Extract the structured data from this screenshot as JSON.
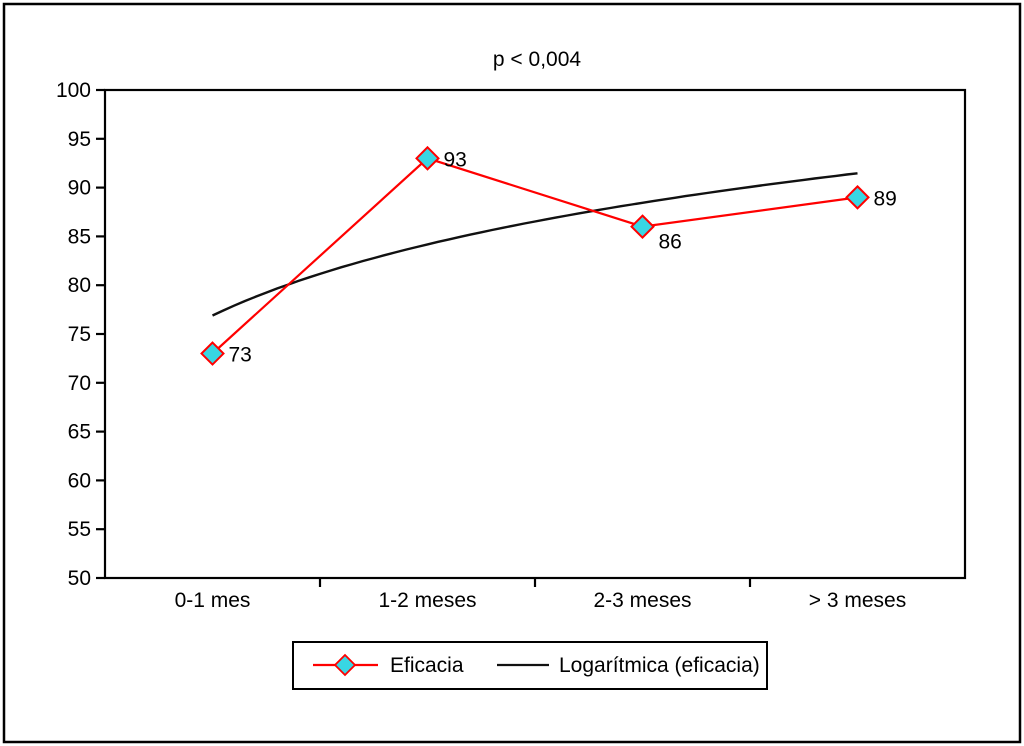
{
  "chart_data": {
    "type": "line",
    "title": "p < 0,004",
    "categories": [
      "0-1 mes",
      "1-2 meses",
      "2-3 meses",
      "> 3 meses"
    ],
    "series": [
      {
        "name": "Eficacia",
        "values": [
          73,
          93,
          86,
          89
        ],
        "color": "#FF0000",
        "marker": "diamond",
        "marker_fill": "#38D6E3",
        "marker_stroke": "#FF0000"
      },
      {
        "name": "Logarítmica (eficacia)",
        "type": "logarithmic-trendline",
        "of_series": "Eficacia",
        "color": "#111111"
      }
    ],
    "data_labels": [
      "73",
      "93",
      "86",
      "89"
    ],
    "ylim": [
      50,
      100
    ],
    "ytick_step": 5,
    "ytick_labels": [
      "50",
      "55",
      "60",
      "65",
      "70",
      "75",
      "80",
      "85",
      "90",
      "95",
      "100"
    ],
    "xlabel": "",
    "ylabel": "",
    "grid": false,
    "legend_position": "bottom",
    "background": "#FFFFFF",
    "border_color": "#000000"
  }
}
